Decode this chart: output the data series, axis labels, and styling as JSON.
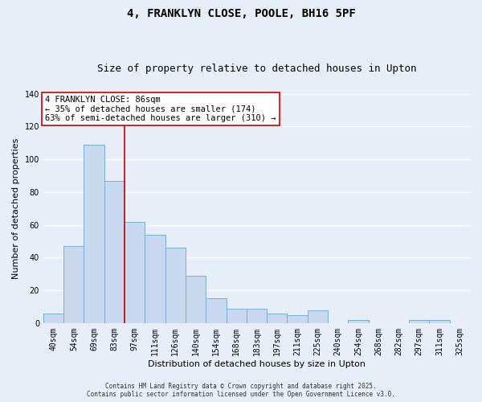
{
  "title": "4, FRANKLYN CLOSE, POOLE, BH16 5PF",
  "subtitle": "Size of property relative to detached houses in Upton",
  "xlabel": "Distribution of detached houses by size in Upton",
  "ylabel": "Number of detached properties",
  "bar_labels": [
    "40sqm",
    "54sqm",
    "69sqm",
    "83sqm",
    "97sqm",
    "111sqm",
    "126sqm",
    "140sqm",
    "154sqm",
    "168sqm",
    "183sqm",
    "197sqm",
    "211sqm",
    "225sqm",
    "240sqm",
    "254sqm",
    "268sqm",
    "282sqm",
    "297sqm",
    "311sqm",
    "325sqm"
  ],
  "bar_values": [
    6,
    47,
    109,
    87,
    62,
    54,
    46,
    29,
    15,
    9,
    9,
    6,
    5,
    8,
    0,
    2,
    0,
    0,
    2,
    2,
    0
  ],
  "bar_color": "#c8d8ee",
  "bar_edge_color": "#7aafd4",
  "vline_color": "#cc0000",
  "ylim": [
    0,
    140
  ],
  "yticks": [
    0,
    20,
    40,
    60,
    80,
    100,
    120,
    140
  ],
  "annotation_line1": "4 FRANKLYN CLOSE: 86sqm",
  "annotation_line2": "← 35% of detached houses are smaller (174)",
  "annotation_line3": "63% of semi-detached houses are larger (310) →",
  "annotation_box_color": "white",
  "annotation_box_edge": "#cc0000",
  "footer_line1": "Contains HM Land Registry data © Crown copyright and database right 2025.",
  "footer_line2": "Contains public sector information licensed under the Open Government Licence v3.0.",
  "background_color": "#e8eef8",
  "grid_color": "#ffffff",
  "title_fontsize": 10,
  "subtitle_fontsize": 9,
  "axis_label_fontsize": 8,
  "tick_fontsize": 7,
  "annotation_fontsize": 7.5,
  "footer_fontsize": 5.5
}
